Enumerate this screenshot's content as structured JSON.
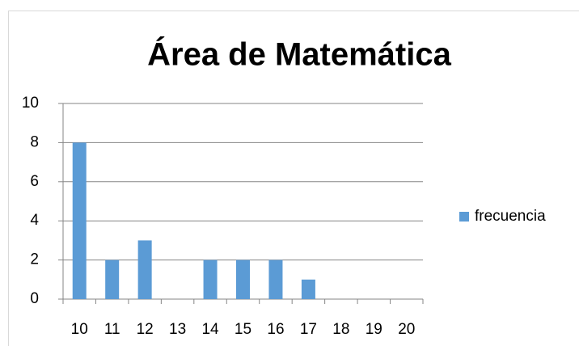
{
  "chart_data": {
    "type": "bar",
    "title": "Área de Matemática",
    "categories": [
      "10",
      "11",
      "12",
      "13",
      "14",
      "15",
      "16",
      "17",
      "18",
      "19",
      "20"
    ],
    "series": [
      {
        "name": "frecuencia",
        "color": "#5b9bd5",
        "values": [
          8,
          2,
          3,
          0,
          2,
          2,
          2,
          1,
          0,
          0,
          0
        ]
      }
    ],
    "ylim": [
      0,
      10
    ],
    "yticks": [
      0,
      2,
      4,
      6,
      8,
      10
    ],
    "grid": true,
    "legend": "right"
  }
}
